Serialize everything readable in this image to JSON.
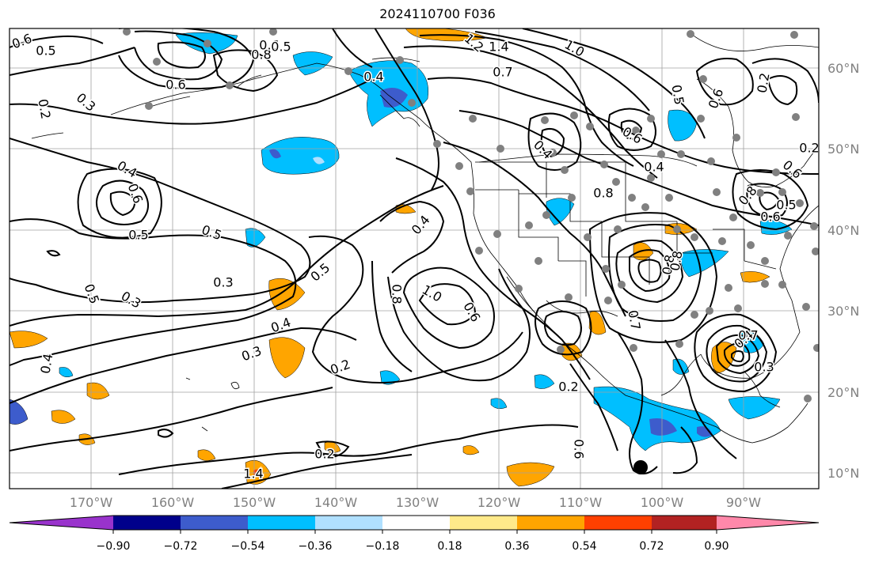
{
  "map": {
    "title": "2024110700 F036",
    "latitudes": [
      "60°N",
      "50°N",
      "40°N",
      "30°N",
      "20°N",
      "10°N"
    ],
    "longitudes": [
      "170°W",
      "160°W",
      "150°W",
      "140°W",
      "130°W",
      "120°W",
      "110°W",
      "100°W",
      "90°W"
    ],
    "contour_labels": [
      "0.6",
      "0.5",
      "0.2",
      "0.3",
      "1.4",
      "1.2",
      "1.0",
      "0.7",
      "0.6",
      "0.8",
      "0.6",
      "0.5",
      "0.4",
      "0.4",
      "0.6",
      "0.5",
      "0.5",
      "0.3",
      "0.5",
      "0.4",
      "0.3",
      "0.5",
      "0.3",
      "0.4",
      "0.8",
      "1.0",
      "0.6",
      "0.4",
      "0.8",
      "0.8",
      "0.6",
      "0.4",
      "0.2",
      "0.2",
      "0.6",
      "0.5",
      "0.2",
      "1.4",
      "0.4",
      "0.6",
      "0.5",
      "0.6",
      "0.4",
      "0.3",
      "0.6",
      "0.8",
      "0.7",
      "0.8",
      "0.7",
      "0.2",
      "0.2"
    ]
  },
  "colorbar": {
    "ticks": [
      "−0.90",
      "−0.72",
      "−0.54",
      "−0.36",
      "−0.18",
      "0.18",
      "0.36",
      "0.54",
      "0.72",
      "0.90"
    ],
    "colors": [
      "#9933cc",
      "#00008b",
      "#3d5ccc",
      "#00bfff",
      "#b0e0ff",
      "#ffffff",
      "#ffea8a",
      "#ffa500",
      "#ff4000",
      "#b22222",
      "#ff88aa"
    ]
  }
}
